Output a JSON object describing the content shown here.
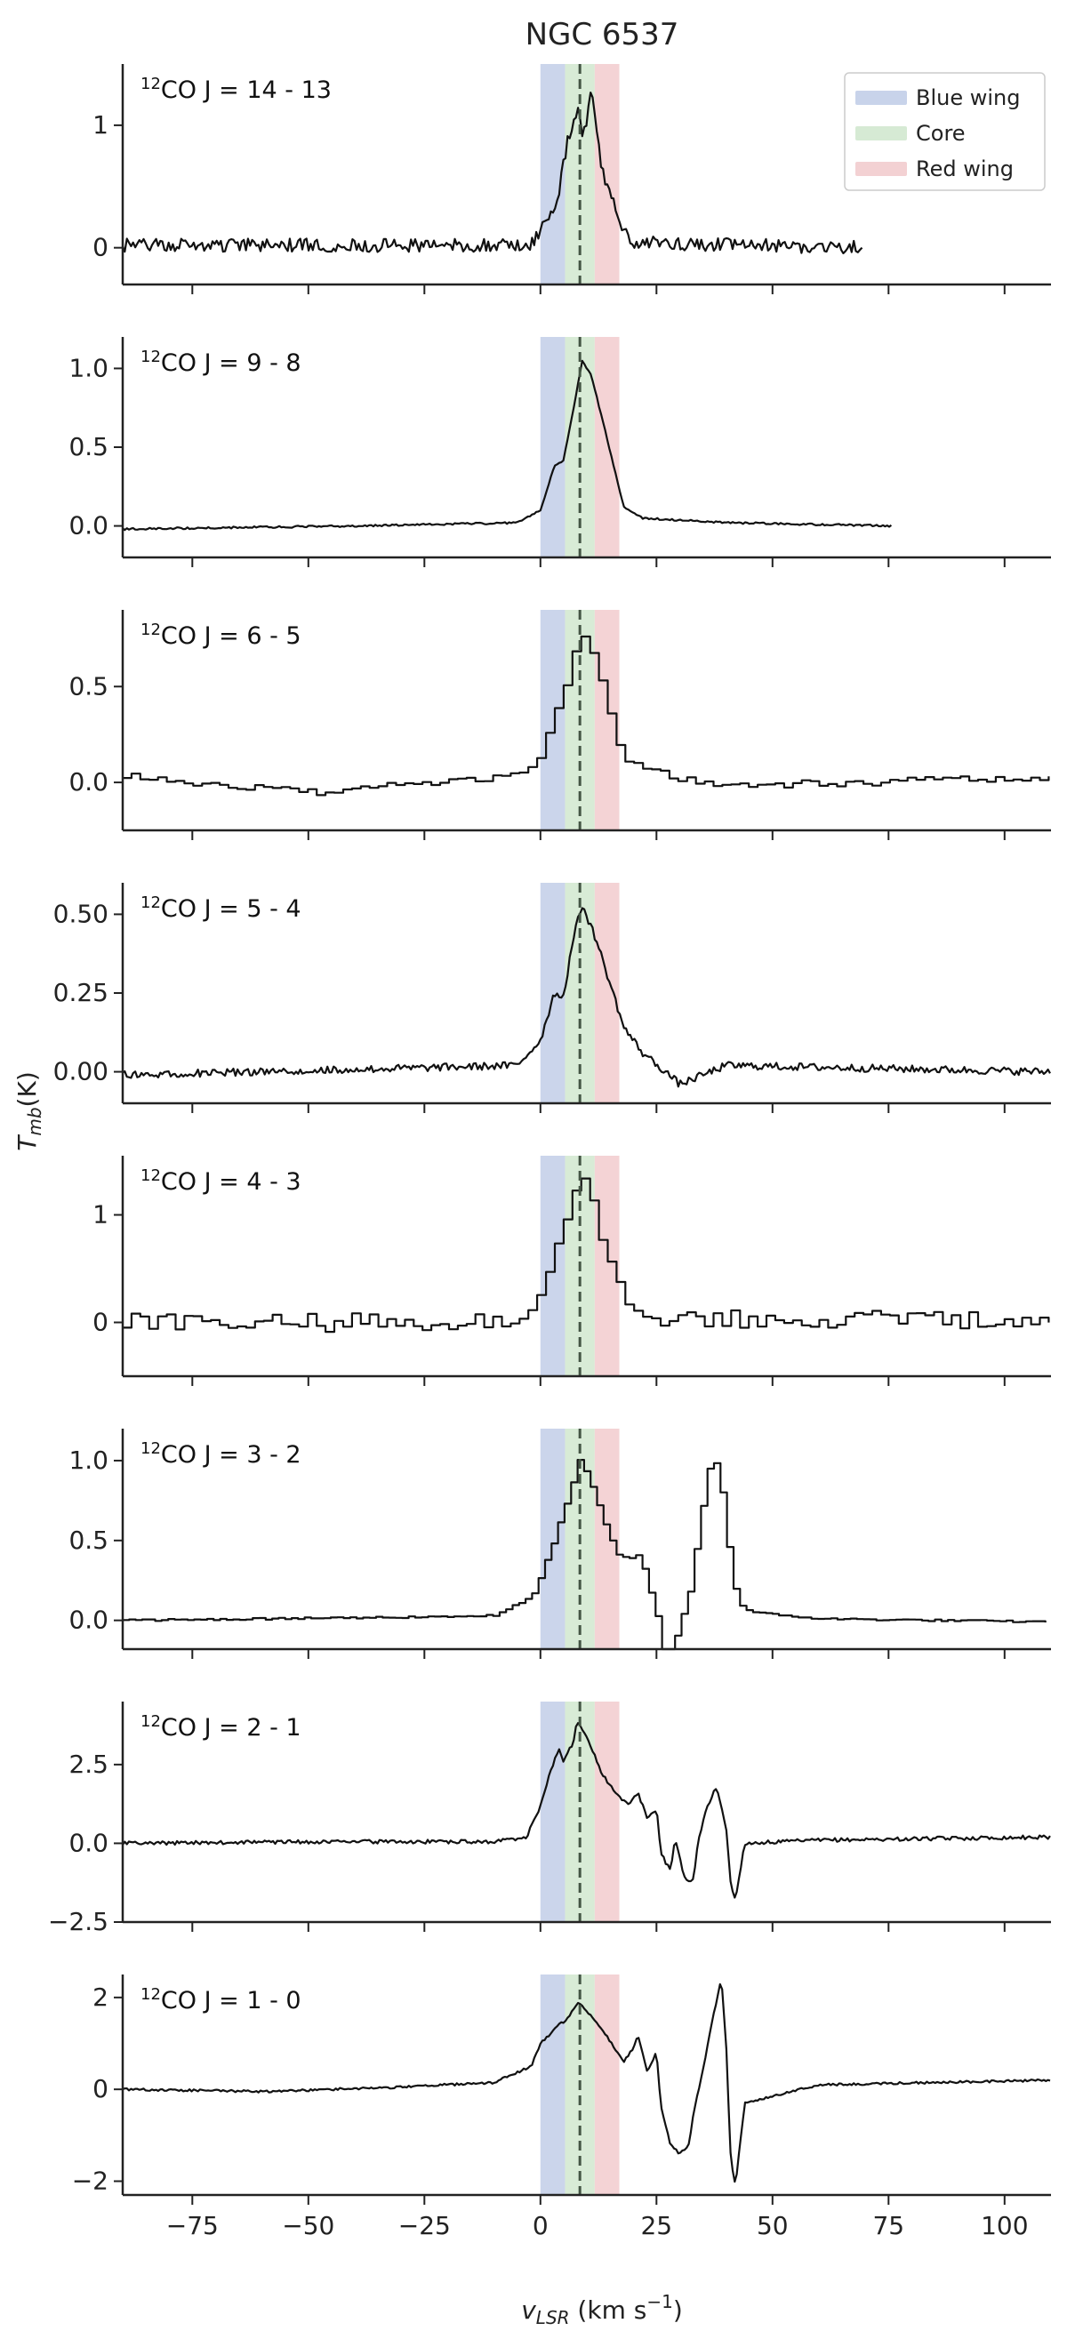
{
  "figure": {
    "title": "NGC 6537",
    "xlabel_main": "v",
    "xlabel_sub": "LSR",
    "xlabel_units": " (km s",
    "xlabel_exp": "−1",
    "xlabel_close": ")",
    "ylabel_main": "T",
    "ylabel_sub": "mb",
    "ylabel_units": "(K)",
    "xlim": [
      -90,
      110
    ],
    "x_ticks": [
      -75,
      -50,
      -25,
      0,
      25,
      50,
      75,
      100
    ],
    "x_tick_labels": [
      "−75",
      "−50",
      "−25",
      "0",
      "25",
      "50",
      "75",
      "100"
    ],
    "systemic_velocity": 8.5,
    "bands": [
      {
        "name": "Blue wing",
        "range": [
          0,
          5.3
        ],
        "color": "#c8d3ea"
      },
      {
        "name": "Core",
        "range": [
          5.3,
          11.7
        ],
        "color": "#d6ead4"
      },
      {
        "name": "Red wing",
        "range": [
          11.7,
          17
        ],
        "color": "#f3d1d3"
      }
    ],
    "legend": {
      "placement": "top-right",
      "entries": [
        "Blue wing",
        "Core",
        "Red wing"
      ]
    },
    "line_color": "#111111",
    "dashed_line_color": "#445544"
  },
  "chart_data": [
    {
      "type": "line",
      "label_iso": "12",
      "label_rest": "CO J = 14 - 13",
      "drawstyle": "line",
      "ylim": [
        -0.3,
        1.5
      ],
      "yticks": [
        0,
        1
      ],
      "ytick_labels": [
        "0",
        "1"
      ],
      "x_end": 69.5,
      "noise": 0.055,
      "seed": 1,
      "profile": [
        [
          -90,
          0.02
        ],
        [
          -2,
          0.02
        ],
        [
          0,
          0.15
        ],
        [
          2,
          0.25
        ],
        [
          4,
          0.45
        ],
        [
          6,
          0.9
        ],
        [
          8,
          1.15
        ],
        [
          9,
          0.9
        ],
        [
          10,
          1.0
        ],
        [
          11,
          1.3
        ],
        [
          12,
          0.95
        ],
        [
          14,
          0.5
        ],
        [
          16,
          0.35
        ],
        [
          18,
          0.12
        ],
        [
          20,
          0.04
        ],
        [
          70,
          0.0
        ]
      ]
    },
    {
      "type": "line",
      "label_iso": "12",
      "label_rest": "CO J = 9 - 8",
      "drawstyle": "line",
      "ylim": [
        -0.2,
        1.2
      ],
      "yticks": [
        0.0,
        0.5,
        1.0
      ],
      "ytick_labels": [
        "0.0",
        "0.5",
        "1.0"
      ],
      "x_end": 76,
      "noise": 0.006,
      "seed": 2,
      "profile": [
        [
          -90,
          -0.02
        ],
        [
          -40,
          0.0
        ],
        [
          -5,
          0.02
        ],
        [
          0,
          0.1
        ],
        [
          3,
          0.38
        ],
        [
          5,
          0.42
        ],
        [
          7,
          0.72
        ],
        [
          9,
          1.05
        ],
        [
          11,
          0.95
        ],
        [
          14,
          0.6
        ],
        [
          16,
          0.35
        ],
        [
          18,
          0.12
        ],
        [
          22,
          0.05
        ],
        [
          40,
          0.02
        ],
        [
          76,
          0.0
        ]
      ]
    },
    {
      "type": "line",
      "label_iso": "12",
      "label_rest": "CO J = 6 - 5",
      "drawstyle": "steps",
      "ylim": [
        -0.25,
        0.9
      ],
      "yticks": [
        0.0,
        0.5
      ],
      "ytick_labels": [
        "0.0",
        "0.5"
      ],
      "x_end": 110,
      "noise": 0.02,
      "seed": 3,
      "step": 1.9,
      "profile": [
        [
          -90,
          0.03
        ],
        [
          -50,
          -0.05
        ],
        [
          -10,
          0.02
        ],
        [
          -1,
          0.1
        ],
        [
          2,
          0.3
        ],
        [
          5,
          0.52
        ],
        [
          8,
          0.78
        ],
        [
          10,
          0.72
        ],
        [
          13,
          0.5
        ],
        [
          16,
          0.2
        ],
        [
          19,
          0.1
        ],
        [
          24,
          0.05
        ],
        [
          40,
          -0.02
        ],
        [
          110,
          0.03
        ]
      ]
    },
    {
      "type": "line",
      "label_iso": "12",
      "label_rest": "CO J = 5 - 4",
      "drawstyle": "line",
      "ylim": [
        -0.1,
        0.6
      ],
      "yticks": [
        0.0,
        0.25,
        0.5
      ],
      "ytick_labels": [
        "0.00",
        "0.25",
        "0.50"
      ],
      "x_end": 110,
      "noise": 0.012,
      "seed": 4,
      "profile": [
        [
          -90,
          -0.01
        ],
        [
          -60,
          0.0
        ],
        [
          -5,
          0.02
        ],
        [
          0,
          0.1
        ],
        [
          3,
          0.25
        ],
        [
          5,
          0.24
        ],
        [
          7,
          0.42
        ],
        [
          9,
          0.53
        ],
        [
          12,
          0.42
        ],
        [
          15,
          0.28
        ],
        [
          18,
          0.14
        ],
        [
          22,
          0.06
        ],
        [
          27,
          0.0
        ],
        [
          30,
          -0.04
        ],
        [
          40,
          0.02
        ],
        [
          110,
          0.0
        ]
      ]
    },
    {
      "type": "line",
      "label_iso": "12",
      "label_rest": "CO J = 4 - 3",
      "drawstyle": "steps",
      "ylim": [
        -0.5,
        1.55
      ],
      "yticks": [
        0,
        1
      ],
      "ytick_labels": [
        "0",
        "1"
      ],
      "x_end": 110,
      "noise": 0.09,
      "seed": 5,
      "step": 1.9,
      "profile": [
        [
          -90,
          0.0
        ],
        [
          -10,
          0.0
        ],
        [
          -2,
          0.1
        ],
        [
          2,
          0.5
        ],
        [
          5,
          0.9
        ],
        [
          8,
          1.3
        ],
        [
          10,
          1.2
        ],
        [
          13,
          0.8
        ],
        [
          16,
          0.4
        ],
        [
          19,
          0.15
        ],
        [
          24,
          0.05
        ],
        [
          110,
          0.0
        ]
      ]
    },
    {
      "type": "line",
      "label_iso": "12",
      "label_rest": "CO J = 3 - 2",
      "drawstyle": "steps",
      "ylim": [
        -0.18,
        1.2
      ],
      "yticks": [
        0.0,
        0.5,
        1.0
      ],
      "ytick_labels": [
        "0.0",
        "0.5",
        "1.0"
      ],
      "x_end": 110,
      "noise": 0.006,
      "seed": 6,
      "step": 1.4,
      "profile": [
        [
          -90,
          0.0
        ],
        [
          -60,
          0.01
        ],
        [
          -30,
          0.02
        ],
        [
          -10,
          0.03
        ],
        [
          -2,
          0.15
        ],
        [
          2,
          0.45
        ],
        [
          6,
          0.8
        ],
        [
          8,
          1.0
        ],
        [
          10,
          0.9
        ],
        [
          13,
          0.65
        ],
        [
          16,
          0.42
        ],
        [
          19,
          0.38
        ],
        [
          21,
          0.42
        ],
        [
          23,
          0.22
        ],
        [
          25,
          0.0
        ],
        [
          26,
          -0.25
        ],
        [
          28,
          -0.2
        ],
        [
          30,
          0.0
        ],
        [
          32,
          0.2
        ],
        [
          34,
          0.62
        ],
        [
          36,
          0.95
        ],
        [
          38,
          1.0
        ],
        [
          40,
          0.5
        ],
        [
          42,
          0.12
        ],
        [
          45,
          0.05
        ],
        [
          60,
          0.01
        ],
        [
          110,
          -0.01
        ]
      ]
    },
    {
      "type": "line",
      "label_iso": "12",
      "label_rest": "CO J = 2 - 1",
      "drawstyle": "line",
      "ylim": [
        -2.5,
        4.5
      ],
      "yticks": [
        -2.5,
        0.0,
        2.5
      ],
      "ytick_labels": [
        "−2.5",
        "0.0",
        "2.5"
      ],
      "x_end": 110,
      "noise": 0.06,
      "seed": 7,
      "profile": [
        [
          -90,
          0.0
        ],
        [
          -50,
          0.05
        ],
        [
          -10,
          0.05
        ],
        [
          -3,
          0.2
        ],
        [
          0,
          1.2
        ],
        [
          2,
          2.2
        ],
        [
          4,
          3.0
        ],
        [
          5,
          2.6
        ],
        [
          7,
          3.2
        ],
        [
          8,
          3.9
        ],
        [
          10,
          3.4
        ],
        [
          13,
          2.3
        ],
        [
          16,
          1.6
        ],
        [
          19,
          1.2
        ],
        [
          21,
          1.6
        ],
        [
          23,
          0.8
        ],
        [
          25,
          1.1
        ],
        [
          26,
          -0.3
        ],
        [
          28,
          -0.9
        ],
        [
          29,
          0.2
        ],
        [
          31,
          -1.1
        ],
        [
          33,
          -1.2
        ],
        [
          34,
          0.1
        ],
        [
          36,
          1.2
        ],
        [
          38,
          1.8
        ],
        [
          40,
          0.5
        ],
        [
          41,
          -1.3
        ],
        [
          42,
          -1.8
        ],
        [
          44,
          0.0
        ],
        [
          60,
          0.1
        ],
        [
          110,
          0.2
        ]
      ]
    },
    {
      "type": "line",
      "label_iso": "12",
      "label_rest": "CO J = 1 - 0",
      "drawstyle": "line",
      "ylim": [
        -2.3,
        2.5
      ],
      "yticks": [
        -2,
        0,
        2
      ],
      "ytick_labels": [
        "−2",
        "0",
        "2"
      ],
      "x_end": 110,
      "noise": 0.025,
      "seed": 8,
      "profile": [
        [
          -90,
          0.0
        ],
        [
          -60,
          -0.05
        ],
        [
          -30,
          0.05
        ],
        [
          -10,
          0.15
        ],
        [
          -2,
          0.5
        ],
        [
          0,
          1.0
        ],
        [
          4,
          1.4
        ],
        [
          6,
          1.55
        ],
        [
          8,
          1.9
        ],
        [
          10,
          1.7
        ],
        [
          14,
          1.2
        ],
        [
          18,
          0.6
        ],
        [
          20,
          0.9
        ],
        [
          21,
          1.2
        ],
        [
          23,
          0.4
        ],
        [
          25,
          0.8
        ],
        [
          26,
          -0.4
        ],
        [
          28,
          -1.2
        ],
        [
          30,
          -1.4
        ],
        [
          32,
          -1.2
        ],
        [
          33,
          -0.5
        ],
        [
          35,
          0.4
        ],
        [
          37,
          1.5
        ],
        [
          39,
          2.4
        ],
        [
          40,
          1.0
        ],
        [
          41,
          -1.5
        ],
        [
          42,
          -2.1
        ],
        [
          44,
          -0.3
        ],
        [
          60,
          0.1
        ],
        [
          110,
          0.2
        ]
      ]
    }
  ]
}
